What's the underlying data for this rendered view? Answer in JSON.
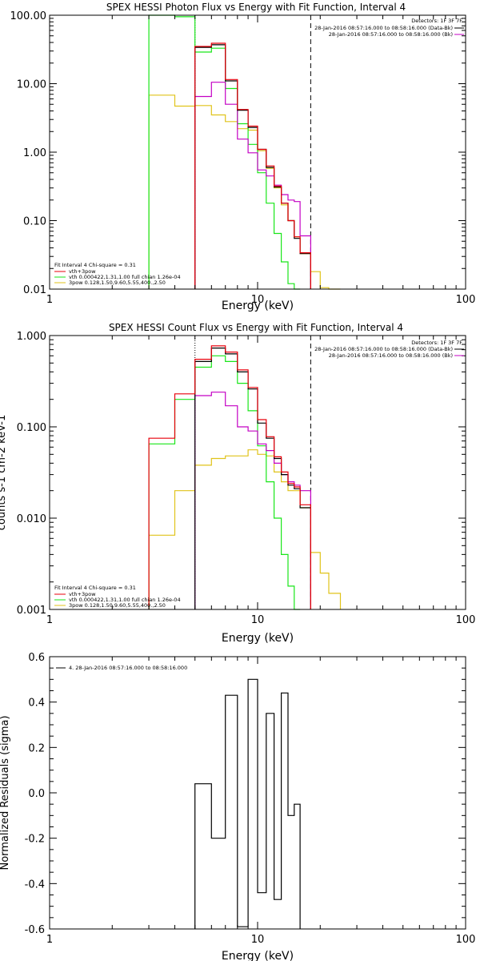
{
  "chart_data": [
    {
      "type": "line",
      "title": "SPEX HESSI Photon Flux vs Energy with Fit Function, Interval 4",
      "xlabel": "Energy (keV)",
      "ylabel": "",
      "xscale": "log",
      "yscale": "log",
      "xlim": [
        1,
        100
      ],
      "ylim": [
        0.01,
        100
      ],
      "xticks": [
        "1",
        "10",
        "100"
      ],
      "yticks": [
        "100.00",
        "10.00",
        "1.00",
        "0.10",
        "0.01"
      ],
      "header": [
        "Detectors: 1F 3F 7F",
        "28-Jan-2016 08:57:16.000 to 08:58:16.000 (Data-Bk)",
        "28-Jan-2016 08:57:16.000 to 08:58:16.000 (Bk)"
      ],
      "fit_text": [
        "Fit Interval 4   Chi-square = 0.31",
        "vth+3pow",
        "vth 0.000422,1.31,1.00  full chian 1.26e-04",
        "3pow 0.128,1.50,9.60,5.55,400.,2.50"
      ],
      "fit_range_keV": [
        5.0,
        18.0
      ],
      "colors": {
        "data": "#000000",
        "model": "#e8000b",
        "bk": "#c400c4",
        "vth": "#19e619",
        "pow": "#e0c31a"
      },
      "series": [
        {
          "name": "vth+3pow",
          "color": "#e8000b",
          "bins": [
            [
              5,
              6,
              35
            ],
            [
              6,
              7,
              39
            ],
            [
              7,
              8,
              11.5
            ],
            [
              8,
              9,
              4.2
            ],
            [
              9,
              10,
              2.4
            ],
            [
              10,
              11,
              1.1
            ],
            [
              11,
              12,
              0.63
            ],
            [
              12,
              13,
              0.32
            ],
            [
              13,
              14,
              0.18
            ],
            [
              14,
              15,
              0.1
            ],
            [
              15,
              16,
              0.058
            ],
            [
              16,
              18,
              0.034
            ]
          ]
        },
        {
          "name": "Data-Bk",
          "color": "#000000",
          "bins": [
            [
              5,
              6,
              34
            ],
            [
              6,
              7,
              37
            ],
            [
              7,
              8,
              11
            ],
            [
              8,
              9,
              4.1
            ],
            [
              9,
              10,
              2.3
            ],
            [
              10,
              11,
              1.1
            ],
            [
              11,
              12,
              0.6
            ],
            [
              12,
              13,
              0.31
            ],
            [
              13,
              14,
              0.18
            ],
            [
              14,
              15,
              0.1
            ],
            [
              15,
              16,
              0.055
            ],
            [
              16,
              18,
              0.033
            ]
          ]
        },
        {
          "name": "Bk",
          "color": "#c400c4",
          "bins": [
            [
              5,
              6,
              6.5
            ],
            [
              6,
              7,
              10.5
            ],
            [
              7,
              8,
              5
            ],
            [
              8,
              9,
              1.55
            ],
            [
              9,
              10,
              0.98
            ],
            [
              10,
              11,
              0.55
            ],
            [
              11,
              12,
              0.45
            ],
            [
              12,
              13,
              0.33
            ],
            [
              13,
              14,
              0.24
            ],
            [
              14,
              15,
              0.2
            ],
            [
              15,
              16,
              0.19
            ],
            [
              16,
              18,
              0.06
            ]
          ]
        },
        {
          "name": "vth 0.000422,1.31,1.00",
          "color": "#19e619",
          "bins": [
            [
              3,
              4,
              100
            ],
            [
              4,
              5,
              95
            ],
            [
              5,
              6,
              29
            ],
            [
              6,
              7,
              33
            ],
            [
              7,
              8,
              8.5
            ],
            [
              8,
              9,
              2.6
            ],
            [
              9,
              10,
              1.3
            ],
            [
              10,
              11,
              0.5
            ],
            [
              11,
              12,
              0.18
            ],
            [
              12,
              13,
              0.065
            ],
            [
              13,
              14,
              0.025
            ],
            [
              14,
              15,
              0.012
            ],
            [
              15,
              16,
              0.005
            ]
          ]
        },
        {
          "name": "3pow 0.128,1.50,9.60,5.55,400.,2.50",
          "color": "#e0c31a",
          "bins": [
            [
              3,
              4,
              6.8
            ],
            [
              4,
              5,
              4.7
            ],
            [
              5,
              6,
              4.8
            ],
            [
              6,
              7,
              3.5
            ],
            [
              7,
              8,
              2.8
            ],
            [
              8,
              9,
              2.2
            ],
            [
              9,
              10,
              2.1
            ],
            [
              10,
              11,
              1.05
            ],
            [
              11,
              12,
              0.58
            ],
            [
              12,
              13,
              0.3
            ],
            [
              13,
              14,
              0.17
            ],
            [
              14,
              15,
              0.1
            ],
            [
              15,
              16,
              0.058
            ],
            [
              16,
              18,
              0.033
            ],
            [
              18,
              20,
              0.018
            ],
            [
              20,
              22,
              0.0105
            ],
            [
              22,
              25,
              0.0095
            ]
          ]
        }
      ]
    },
    {
      "type": "line",
      "title": "SPEX HESSI Count Flux vs Energy with Fit Function, Interval 4",
      "xlabel": "Energy (keV)",
      "ylabel": "counts s-1 cm-2 keV-1",
      "xscale": "log",
      "yscale": "log",
      "xlim": [
        1,
        100
      ],
      "ylim": [
        0.001,
        1
      ],
      "xticks": [
        "1",
        "10",
        "100"
      ],
      "yticks": [
        "1.000",
        "0.100",
        "0.010",
        "0.001"
      ],
      "header": [
        "Detectors: 1F 3F 7F",
        "28-Jan-2016 08:57:16.000 to 08:58:16.000 (Data-Bk)",
        "28-Jan-2016 08:57:16.000 to 08:58:16.000 (Bk)"
      ],
      "fit_text": [
        "Fit Interval 4   Chi-square = 0.31",
        "vth+3pow",
        "vth 0.000422,1.31,1.00  full chian 1.26e-04",
        "3pow 0.128,1.50,9.60,5.55,400.,2.50"
      ],
      "fit_range_keV": [
        5.0,
        18.0
      ],
      "colors": {
        "data": "#000000",
        "model": "#e8000b",
        "bk": "#c400c4",
        "vth": "#19e619",
        "pow": "#e0c31a"
      },
      "series": [
        {
          "name": "vth+3pow",
          "color": "#e8000b",
          "bins": [
            [
              3,
              4,
              0.075
            ],
            [
              4,
              5,
              0.23
            ],
            [
              5,
              6,
              0.55
            ],
            [
              6,
              7,
              0.77
            ],
            [
              7,
              8,
              0.66
            ],
            [
              8,
              9,
              0.42
            ],
            [
              9,
              10,
              0.27
            ],
            [
              10,
              11,
              0.12
            ],
            [
              11,
              12,
              0.078
            ],
            [
              12,
              13,
              0.047
            ],
            [
              13,
              14,
              0.032
            ],
            [
              14,
              15,
              0.024
            ],
            [
              15,
              16,
              0.022
            ],
            [
              16,
              18,
              0.014
            ]
          ]
        },
        {
          "name": "Data-Bk",
          "color": "#000000",
          "bins": [
            [
              5,
              6,
              0.52
            ],
            [
              6,
              7,
              0.73
            ],
            [
              7,
              8,
              0.63
            ],
            [
              8,
              9,
              0.4
            ],
            [
              9,
              10,
              0.26
            ],
            [
              10,
              11,
              0.11
            ],
            [
              11,
              12,
              0.075
            ],
            [
              12,
              13,
              0.045
            ],
            [
              13,
              14,
              0.03
            ],
            [
              14,
              15,
              0.023
            ],
            [
              15,
              16,
              0.021
            ],
            [
              16,
              18,
              0.013
            ]
          ]
        },
        {
          "name": "Bk",
          "color": "#c400c4",
          "bins": [
            [
              5,
              6,
              0.22
            ],
            [
              6,
              7,
              0.24
            ],
            [
              7,
              8,
              0.17
            ],
            [
              8,
              9,
              0.1
            ],
            [
              9,
              10,
              0.09
            ],
            [
              10,
              11,
              0.065
            ],
            [
              11,
              12,
              0.055
            ],
            [
              12,
              13,
              0.04
            ],
            [
              13,
              14,
              0.03
            ],
            [
              14,
              15,
              0.025
            ],
            [
              15,
              16,
              0.023
            ],
            [
              16,
              18,
              0.02
            ]
          ]
        },
        {
          "name": "vth 0.000422,1.31,1.00",
          "color": "#19e619",
          "bins": [
            [
              3,
              4,
              0.065
            ],
            [
              4,
              5,
              0.2
            ],
            [
              5,
              6,
              0.45
            ],
            [
              6,
              7,
              0.6
            ],
            [
              7,
              8,
              0.52
            ],
            [
              8,
              9,
              0.3
            ],
            [
              9,
              10,
              0.15
            ],
            [
              10,
              11,
              0.062
            ],
            [
              11,
              12,
              0.025
            ],
            [
              12,
              13,
              0.01
            ],
            [
              13,
              14,
              0.004
            ],
            [
              14,
              15,
              0.0018
            ],
            [
              15,
              16,
              0.0008
            ]
          ]
        },
        {
          "name": "3pow 0.128,1.50,9.60,5.55,400.,2.50",
          "color": "#e0c31a",
          "bins": [
            [
              3,
              4,
              0.0065
            ],
            [
              4,
              5,
              0.02
            ],
            [
              5,
              6,
              0.038
            ],
            [
              6,
              7,
              0.045
            ],
            [
              7,
              8,
              0.048
            ],
            [
              8,
              9,
              0.048
            ],
            [
              9,
              10,
              0.056
            ],
            [
              10,
              11,
              0.05
            ],
            [
              11,
              12,
              0.048
            ],
            [
              12,
              13,
              0.032
            ],
            [
              13,
              14,
              0.025
            ],
            [
              14,
              15,
              0.02
            ],
            [
              15,
              16,
              0.02
            ],
            [
              16,
              18,
              0.013
            ],
            [
              18,
              20,
              0.0042
            ],
            [
              20,
              22,
              0.0025
            ],
            [
              22,
              25,
              0.0015
            ]
          ]
        }
      ]
    },
    {
      "type": "line",
      "title": "",
      "xlabel": "Energy (keV)",
      "ylabel": "Normalized Residuals (sigma)",
      "xscale": "log",
      "yscale": "linear",
      "xlim": [
        1,
        100
      ],
      "ylim": [
        -0.6,
        0.6
      ],
      "xticks": [
        "1",
        "10",
        "100"
      ],
      "yticks": [
        "0.6",
        "0.4",
        "0.2",
        "0.0",
        "-0.2",
        "-0.4",
        "-0.6"
      ],
      "legend": "4. 28-Jan-2016 08:57:16.000 to 08:58:16.000",
      "legend_position": "top-left",
      "series": [
        {
          "name": "4. 28-Jan-2016 08:57:16.000 to 08:58:16.000",
          "color": "#000000",
          "bins": [
            [
              5,
              6,
              0.04
            ],
            [
              6,
              7,
              -0.2
            ],
            [
              7,
              8,
              0.43
            ],
            [
              8,
              9,
              -0.59
            ],
            [
              9,
              10,
              0.5
            ],
            [
              10,
              11,
              -0.44
            ],
            [
              11,
              12,
              0.35
            ],
            [
              12,
              13,
              -0.47
            ],
            [
              13,
              14,
              0.44
            ],
            [
              14,
              15,
              -0.1
            ],
            [
              15,
              16,
              -0.05
            ]
          ]
        }
      ]
    }
  ]
}
